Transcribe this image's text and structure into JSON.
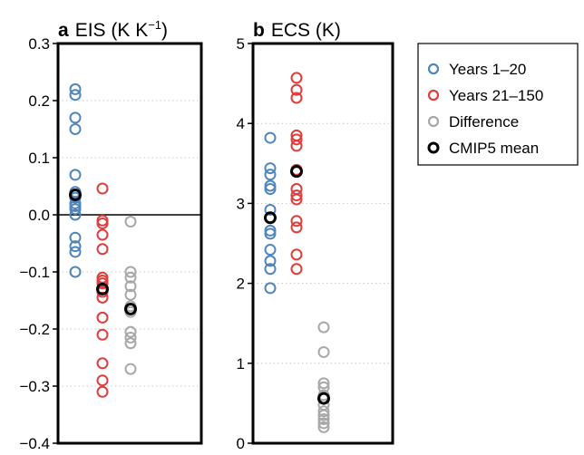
{
  "chart_data": [
    {
      "type": "scatter",
      "panel_letter": "a",
      "title": "EIS (K K",
      "title_superscript": "−1",
      "title_suffix": ")",
      "ylim": [
        -0.4,
        0.3
      ],
      "yticks": [
        -0.4,
        -0.3,
        -0.2,
        -0.1,
        0.0,
        0.1,
        0.2,
        0.3
      ],
      "ytick_labels": [
        "−0.4",
        "−0.3",
        "−0.2",
        "−0.1",
        "0.0",
        "0.1",
        "0.2",
        "0.3"
      ],
      "zero_line": true,
      "grid": "dotted horizontal",
      "columns": [
        {
          "series": "Years 1–20",
          "values": [
            0.22,
            0.21,
            0.17,
            0.15,
            0.07,
            0.04,
            0.03,
            0.02,
            0.015,
            0.01,
            0.0,
            -0.04,
            -0.055,
            -0.065,
            -0.1
          ],
          "mean": 0.035
        },
        {
          "series": "Years 21–150",
          "values": [
            0.046,
            -0.01,
            -0.015,
            -0.035,
            -0.06,
            -0.11,
            -0.115,
            -0.12,
            -0.135,
            -0.145,
            -0.18,
            -0.21,
            -0.26,
            -0.29,
            -0.31
          ],
          "mean": -0.13
        },
        {
          "series": "Difference",
          "values": [
            -0.012,
            -0.1,
            -0.11,
            -0.125,
            -0.14,
            -0.16,
            -0.17,
            -0.205,
            -0.215,
            -0.225,
            -0.27
          ],
          "mean": -0.165
        }
      ]
    },
    {
      "type": "scatter",
      "panel_letter": "b",
      "title": "ECS (K)",
      "ylim": [
        0,
        5
      ],
      "yticks": [
        0,
        1,
        2,
        3,
        4,
        5
      ],
      "ytick_labels": [
        "0",
        "1",
        "2",
        "3",
        "4",
        "5"
      ],
      "zero_line": false,
      "grid": "dotted horizontal",
      "columns": [
        {
          "series": "Years 1–20",
          "values": [
            3.82,
            3.44,
            3.36,
            3.22,
            3.18,
            2.92,
            2.82,
            2.66,
            2.62,
            2.42,
            2.28,
            2.18,
            1.94
          ],
          "mean": 2.82
        },
        {
          "series": "Years 21–150",
          "values": [
            4.57,
            4.42,
            4.32,
            3.85,
            3.8,
            3.72,
            3.42,
            3.18,
            3.1,
            3.05,
            2.78,
            2.7,
            2.36,
            2.18
          ],
          "mean": 3.4
        },
        {
          "series": "Difference",
          "values": [
            1.45,
            1.14,
            0.75,
            0.7,
            0.6,
            0.48,
            0.4,
            0.35,
            0.3,
            0.25,
            0.2
          ],
          "mean": 0.56
        }
      ]
    }
  ],
  "legend": {
    "placement": "top-right",
    "entries": [
      {
        "label": "Years 1–20",
        "color": "#4f86bd"
      },
      {
        "label": "Years 21–150",
        "color": "#e03c3c"
      },
      {
        "label": "Difference",
        "color": "#a8a8a8"
      },
      {
        "label": "CMIP5 mean",
        "color": "#000000"
      }
    ]
  },
  "colors": {
    "Years 1–20": "#4f86bd",
    "Years 21–150": "#e03c3c",
    "Difference": "#a8a8a8",
    "mean": "#000000"
  }
}
